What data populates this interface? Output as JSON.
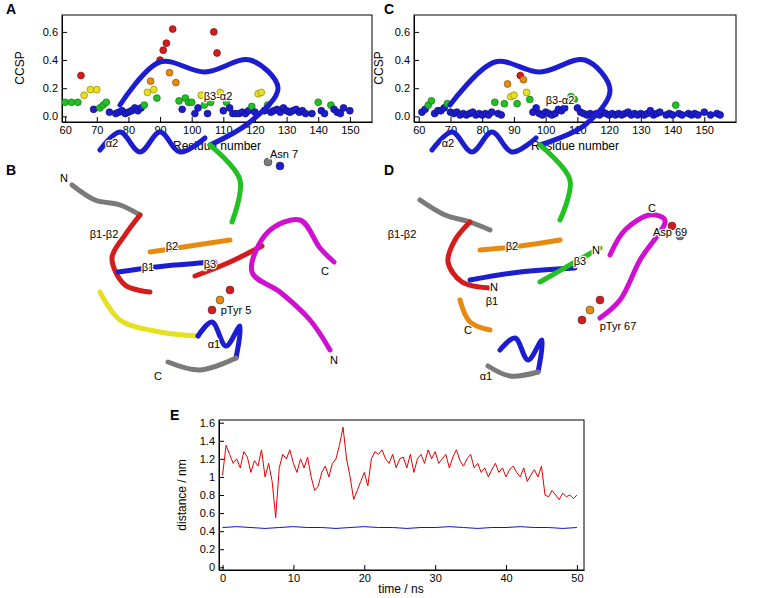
{
  "chart_data": [
    {
      "type": "scatter",
      "panel": "A",
      "xlabel": "Residue number",
      "ylabel": "CCSP",
      "marker": "circle",
      "grid": false,
      "xlim": [
        59,
        157
      ],
      "ylim": [
        -0.04,
        0.72
      ],
      "xticks": [
        60,
        70,
        80,
        90,
        100,
        110,
        120,
        130,
        140,
        150
      ],
      "yticks": [
        {
          "value": 0,
          "label": "0.0"
        },
        0.2,
        0.4,
        0.6
      ],
      "x": [
        60,
        62,
        64,
        65,
        66,
        68,
        69,
        70,
        71,
        72,
        73,
        74,
        76,
        77,
        78,
        79,
        80,
        81,
        82,
        83,
        84,
        85,
        86,
        87,
        88,
        89,
        90,
        91,
        92,
        93,
        94,
        95,
        96,
        97,
        98,
        99,
        100,
        101,
        102,
        103,
        104,
        105,
        106,
        107,
        108,
        109,
        110,
        111,
        112,
        113,
        114,
        115,
        116,
        117,
        118,
        119,
        120,
        121,
        122,
        123,
        124,
        125,
        126,
        127,
        128,
        129,
        130,
        131,
        132,
        133,
        134,
        135,
        136,
        138,
        140,
        141,
        142,
        144,
        145,
        146,
        147,
        148,
        150
      ],
      "values": [
        0.1,
        0.1,
        0.1,
        0.29,
        0.15,
        0.19,
        0.05,
        0.19,
        0.06,
        0.08,
        0.1,
        0.03,
        0.02,
        0.03,
        0.04,
        0.02,
        0.03,
        0.04,
        0.06,
        0.04,
        0.06,
        0.08,
        0.17,
        0.25,
        0.19,
        0.13,
        0.4,
        0.47,
        0.52,
        0.31,
        0.62,
        0.24,
        0.11,
        0.05,
        0.13,
        0.1,
        0.1,
        0.02,
        0.06,
        0.15,
        0.08,
        0.02,
        0.1,
        0.6,
        0.45,
        0.17,
        0.04,
        0.1,
        0.06,
        0.02,
        0.02,
        0.02,
        0.03,
        0.02,
        0.04,
        0.07,
        0.03,
        0.16,
        0.17,
        0.04,
        0.08,
        0.03,
        0.04,
        0.05,
        0.03,
        0.06,
        0.04,
        0.03,
        0.04,
        0.05,
        0.03,
        0.04,
        0.02,
        0.02,
        0.1,
        0.04,
        0.02,
        0.08,
        0.05,
        0.03,
        0.02,
        0.06,
        0.04
      ],
      "colors": [
        "#22c022",
        "#22c022",
        "#22c022",
        "#d41c1c",
        "#e6e020",
        "#e6e020",
        "#1c1cd0",
        "#e6e020",
        "#22c022",
        "#22c022",
        "#22c022",
        "#1c1cd0",
        "#1c1cd0",
        "#1c1cd0",
        "#1c1cd0",
        "#1c1cd0",
        "#1c1cd0",
        "#1c1cd0",
        "#1c1cd0",
        "#1c1cd0",
        "#1c1cd0",
        "#22c022",
        "#e6e020",
        "#e68a10",
        "#e6e020",
        "#22c022",
        "#d41c1c",
        "#d41c1c",
        "#d41c1c",
        "#e68a10",
        "#d41c1c",
        "#e68a10",
        "#22c022",
        "#1c1cd0",
        "#22c022",
        "#22c022",
        "#22c022",
        "#1c1cd0",
        "#1c1cd0",
        "#e6e020",
        "#22c022",
        "#1c1cd0",
        "#22c022",
        "#d41c1c",
        "#d41c1c",
        "#e6e020",
        "#1c1cd0",
        "#22c022",
        "#1c1cd0",
        "#1c1cd0",
        "#1c1cd0",
        "#1c1cd0",
        "#1c1cd0",
        "#1c1cd0",
        "#1c1cd0",
        "#22c022",
        "#1c1cd0",
        "#e6e020",
        "#e6e020",
        "#1c1cd0",
        "#22c022",
        "#1c1cd0",
        "#1c1cd0",
        "#1c1cd0",
        "#1c1cd0",
        "#1c1cd0",
        "#1c1cd0",
        "#1c1cd0",
        "#1c1cd0",
        "#1c1cd0",
        "#1c1cd0",
        "#1c1cd0",
        "#1c1cd0",
        "#1c1cd0",
        "#22c022",
        "#1c1cd0",
        "#1c1cd0",
        "#22c022",
        "#1c1cd0",
        "#1c1cd0",
        "#1c1cd0",
        "#1c1cd0",
        "#1c1cd0"
      ]
    },
    {
      "type": "scatter",
      "panel": "C",
      "xlabel": "Residue number",
      "ylabel": "CCSP",
      "marker": "circle",
      "grid": false,
      "xlim": [
        58.5,
        160
      ],
      "ylim": [
        -0.04,
        0.72
      ],
      "xticks": [
        60,
        70,
        80,
        90,
        100,
        110,
        120,
        130,
        140,
        150
      ],
      "yticks": [
        {
          "value": 0,
          "label": "0.0"
        },
        0.2,
        0.4,
        0.6
      ],
      "x": [
        61,
        62,
        63,
        64,
        65,
        66,
        67,
        68,
        69,
        70,
        71,
        72,
        73,
        74,
        75,
        76,
        77,
        78,
        79,
        80,
        81,
        82,
        83,
        84,
        85,
        86,
        87,
        88,
        89,
        90,
        91,
        92,
        93,
        94,
        95,
        96,
        97,
        98,
        99,
        100,
        101,
        102,
        103,
        104,
        105,
        106,
        107,
        108,
        109,
        110,
        111,
        112,
        113,
        114,
        115,
        116,
        117,
        118,
        119,
        120,
        121,
        122,
        123,
        124,
        125,
        126,
        127,
        128,
        129,
        130,
        131,
        132,
        133,
        134,
        135,
        136,
        138,
        139,
        140,
        141,
        142,
        143,
        145,
        146,
        147,
        148,
        150,
        152,
        154,
        155
      ],
      "values": [
        0.03,
        0.05,
        0.08,
        0.11,
        0.02,
        0.04,
        0.04,
        0.06,
        0.09,
        0.03,
        0.02,
        0.03,
        0.01,
        0.02,
        0.01,
        0.02,
        0.03,
        0.01,
        0.02,
        0.01,
        0.02,
        0.01,
        0.03,
        0.1,
        0.02,
        0.01,
        0.09,
        0.23,
        0.14,
        0.15,
        0.09,
        0.29,
        0.26,
        0.17,
        0.12,
        0.03,
        0.06,
        0.02,
        0.01,
        0.03,
        0.02,
        0.01,
        0.02,
        0.05,
        0.04,
        0.06,
        0.11,
        0.14,
        0.12,
        0.06,
        0.03,
        0.02,
        0.01,
        0.02,
        0.01,
        0.02,
        0.01,
        0.03,
        0.02,
        0.01,
        0.02,
        0.01,
        0.02,
        0.01,
        0.02,
        0.03,
        0.01,
        0.02,
        0.01,
        0.02,
        0.01,
        0.02,
        0.04,
        0.01,
        0.02,
        0.03,
        0.01,
        0.02,
        0.01,
        0.08,
        0.02,
        0.01,
        0.02,
        0.01,
        0.02,
        0.01,
        0.03,
        0.01,
        0.02,
        0.01
      ],
      "colors": [
        "#1c1cd0",
        "#1c1cd0",
        "#22c022",
        "#22c022",
        "#1c1cd0",
        "#1c1cd0",
        "#1c1cd0",
        "#1c1cd0",
        "#22c022",
        "#1c1cd0",
        "#1c1cd0",
        "#1c1cd0",
        "#1c1cd0",
        "#1c1cd0",
        "#1c1cd0",
        "#1c1cd0",
        "#1c1cd0",
        "#1c1cd0",
        "#1c1cd0",
        "#1c1cd0",
        "#1c1cd0",
        "#1c1cd0",
        "#1c1cd0",
        "#22c022",
        "#1c1cd0",
        "#1c1cd0",
        "#22c022",
        "#e68a10",
        "#e6e020",
        "#e6e020",
        "#22c022",
        "#d41c1c",
        "#e68a10",
        "#e6e020",
        "#22c022",
        "#1c1cd0",
        "#1c1cd0",
        "#1c1cd0",
        "#1c1cd0",
        "#1c1cd0",
        "#1c1cd0",
        "#1c1cd0",
        "#1c1cd0",
        "#1c1cd0",
        "#1c1cd0",
        "#1c1cd0",
        "#22c022",
        "#22c022",
        "#22c022",
        "#1c1cd0",
        "#1c1cd0",
        "#1c1cd0",
        "#1c1cd0",
        "#1c1cd0",
        "#1c1cd0",
        "#1c1cd0",
        "#1c1cd0",
        "#1c1cd0",
        "#1c1cd0",
        "#1c1cd0",
        "#1c1cd0",
        "#1c1cd0",
        "#1c1cd0",
        "#1c1cd0",
        "#1c1cd0",
        "#1c1cd0",
        "#1c1cd0",
        "#1c1cd0",
        "#1c1cd0",
        "#1c1cd0",
        "#1c1cd0",
        "#1c1cd0",
        "#1c1cd0",
        "#1c1cd0",
        "#1c1cd0",
        "#1c1cd0",
        "#1c1cd0",
        "#1c1cd0",
        "#1c1cd0",
        "#22c022",
        "#1c1cd0",
        "#1c1cd0",
        "#1c1cd0",
        "#1c1cd0",
        "#1c1cd0",
        "#1c1cd0",
        "#1c1cd0",
        "#1c1cd0",
        "#1c1cd0",
        "#1c1cd0"
      ]
    },
    {
      "type": "line",
      "panel": "E",
      "xlabel": "time / ns",
      "ylabel": "distance / nm",
      "grid": false,
      "xlim": [
        -0.5,
        51
      ],
      "ylim": [
        -0.03,
        1.63
      ],
      "xticks": [
        0,
        10,
        20,
        30,
        40,
        50
      ],
      "yticks": [
        0,
        0.2,
        0.4,
        0.6,
        0.8,
        1,
        1.2,
        1.4,
        1.6
      ],
      "series": [
        {
          "color": "#e00000",
          "line_style": "solid",
          "x": [
            0,
            0.5,
            1,
            1.5,
            2,
            2.5,
            3,
            3.5,
            4,
            4.5,
            5,
            5.5,
            6,
            6.5,
            7,
            7.5,
            8,
            8.5,
            9,
            9.5,
            10,
            10.5,
            11,
            11.5,
            12,
            12.5,
            13,
            13.5,
            14,
            14.5,
            15,
            15.5,
            16,
            16.5,
            17,
            17.5,
            18,
            18.5,
            19,
            19.5,
            20,
            20.5,
            21,
            21.5,
            22,
            22.5,
            23,
            23.5,
            24,
            24.5,
            25,
            25.5,
            26,
            26.5,
            27,
            27.5,
            28,
            28.5,
            29,
            29.5,
            30,
            30.5,
            31,
            31.5,
            32,
            32.5,
            33,
            33.5,
            34,
            34.5,
            35,
            35.5,
            36,
            36.5,
            37,
            37.5,
            38,
            38.5,
            39,
            39.5,
            40,
            40.5,
            41,
            41.5,
            42,
            42.5,
            43,
            43.5,
            44,
            44.5,
            45,
            45.5,
            46,
            46.5,
            47,
            47.5,
            48,
            48.5,
            49,
            49.5,
            50
          ],
          "values": [
            1.02,
            1.35,
            1.25,
            1.15,
            1.2,
            1.1,
            1.28,
            1.22,
            1.05,
            1.18,
            1.12,
            1.3,
            1.0,
            1.15,
            0.95,
            0.55,
            1.1,
            1.25,
            1.2,
            1.3,
            1.15,
            1.05,
            1.2,
            1.1,
            1.22,
            1.0,
            0.85,
            0.9,
            1.05,
            1.12,
            1.0,
            1.15,
            1.2,
            1.35,
            1.55,
            1.2,
            1.0,
            0.75,
            0.85,
            0.95,
            1.05,
            0.9,
            1.2,
            1.28,
            1.25,
            1.3,
            1.2,
            1.15,
            1.25,
            1.1,
            1.2,
            1.22,
            1.1,
            1.25,
            1.05,
            1.2,
            1.25,
            1.15,
            1.3,
            1.2,
            1.28,
            1.15,
            1.2,
            1.25,
            1.1,
            1.22,
            1.3,
            1.18,
            1.12,
            1.2,
            1.25,
            1.1,
            1.15,
            1.05,
            1.1,
            1.0,
            1.08,
            1.15,
            1.05,
            1.1,
            1.0,
            1.08,
            1.12,
            1.05,
            1.0,
            1.1,
            0.95,
            1.02,
            1.08,
            1.0,
            1.12,
            0.8,
            0.78,
            0.85,
            0.8,
            0.75,
            0.82,
            0.78,
            0.8,
            0.76,
            0.8
          ]
        },
        {
          "color": "#1010d0",
          "line_style": "solid",
          "x": [
            0,
            2,
            4,
            6,
            8,
            10,
            12,
            14,
            16,
            18,
            20,
            22,
            24,
            26,
            28,
            30,
            32,
            34,
            36,
            38,
            40,
            42,
            44,
            46,
            48,
            50
          ],
          "values": [
            0.44,
            0.45,
            0.44,
            0.43,
            0.44,
            0.45,
            0.44,
            0.44,
            0.43,
            0.44,
            0.45,
            0.44,
            0.44,
            0.43,
            0.44,
            0.44,
            0.45,
            0.44,
            0.43,
            0.44,
            0.44,
            0.45,
            0.44,
            0.44,
            0.43,
            0.44
          ]
        }
      ]
    }
  ],
  "structures": [
    {
      "panel": "B",
      "labels": [
        "β3-α2",
        "α2",
        "Asn 7",
        "C",
        "N",
        "β1-β2",
        "β2",
        "β3",
        "β1",
        "pTyr 5",
        "α1",
        "C",
        "N"
      ]
    },
    {
      "panel": "D",
      "labels": [
        "β3-α2",
        "α2",
        "Asp 69",
        "C",
        "N",
        "β1-β2",
        "β2",
        "β3",
        "N",
        "β1",
        "C",
        "pTyr 67",
        "α1"
      ]
    }
  ]
}
